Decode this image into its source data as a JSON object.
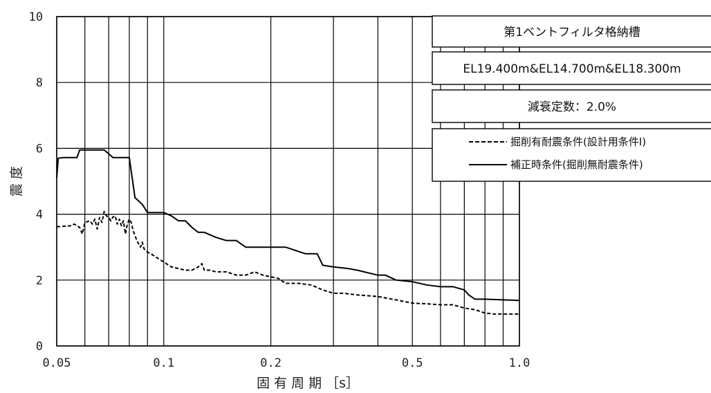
{
  "chart_data": {
    "type": "line",
    "title_lines": [
      "第1ベントフィルタ格納槽",
      "EL19.400m&EL14.700m&EL18.300m",
      "減衰定数：2.0%"
    ],
    "xlabel": "固 有 周 期 ［s］",
    "ylabel": "震 度",
    "x_scale": "log",
    "xlim": [
      0.05,
      1.0
    ],
    "ylim": [
      0,
      10
    ],
    "x_tick_labels": [
      {
        "value": 0.05,
        "label": "0.05"
      },
      {
        "value": 0.1,
        "label": "0.1"
      },
      {
        "value": 0.2,
        "label": "0.2"
      },
      {
        "value": 0.5,
        "label": "0.5"
      },
      {
        "value": 1.0,
        "label": "1.0"
      }
    ],
    "x_gridlines": [
      0.05,
      0.06,
      0.07,
      0.08,
      0.09,
      0.1,
      0.2,
      0.3,
      0.4,
      0.5,
      0.6,
      0.7,
      0.8,
      0.9,
      1.0
    ],
    "y_ticks": [
      0,
      2,
      4,
      6,
      8,
      10
    ],
    "grid": true,
    "legend_position": "top-right",
    "series": [
      {
        "name": "掘削有耐震条件(設計用条件Ⅰ)",
        "style": "dashed",
        "color": "#000000",
        "x": [
          0.05,
          0.055,
          0.056,
          0.058,
          0.059,
          0.06,
          0.062,
          0.063,
          0.064,
          0.065,
          0.066,
          0.067,
          0.068,
          0.069,
          0.07,
          0.071,
          0.072,
          0.073,
          0.074,
          0.075,
          0.076,
          0.077,
          0.078,
          0.079,
          0.08,
          0.081,
          0.082,
          0.083,
          0.084,
          0.085,
          0.086,
          0.087,
          0.088,
          0.09,
          0.092,
          0.095,
          0.1,
          0.105,
          0.11,
          0.115,
          0.12,
          0.125,
          0.128,
          0.13,
          0.135,
          0.14,
          0.15,
          0.16,
          0.17,
          0.18,
          0.19,
          0.2,
          0.21,
          0.22,
          0.24,
          0.26,
          0.28,
          0.3,
          0.32,
          0.35,
          0.4,
          0.45,
          0.5,
          0.55,
          0.6,
          0.65,
          0.7,
          0.75,
          0.8,
          0.85,
          0.9,
          1.0
        ],
        "y": [
          3.62,
          3.65,
          3.7,
          3.6,
          3.4,
          3.75,
          3.8,
          3.7,
          3.85,
          3.55,
          3.9,
          3.75,
          4.08,
          3.95,
          3.9,
          3.8,
          3.92,
          3.95,
          3.7,
          3.85,
          3.65,
          3.8,
          3.4,
          3.7,
          3.85,
          3.75,
          3.5,
          3.35,
          3.2,
          3.1,
          3.0,
          3.15,
          2.95,
          2.85,
          2.8,
          2.7,
          2.55,
          2.4,
          2.35,
          2.3,
          2.3,
          2.4,
          2.5,
          2.3,
          2.3,
          2.25,
          2.25,
          2.15,
          2.15,
          2.25,
          2.15,
          2.1,
          2.05,
          1.9,
          1.9,
          1.85,
          1.7,
          1.6,
          1.6,
          1.55,
          1.5,
          1.4,
          1.3,
          1.28,
          1.25,
          1.25,
          1.15,
          1.1,
          1.0,
          0.97,
          0.97,
          0.97
        ]
      },
      {
        "name": "補正時条件(掘削無耐震条件)",
        "style": "solid",
        "color": "#000000",
        "x": [
          0.05,
          0.0505,
          0.052,
          0.057,
          0.058,
          0.06,
          0.066,
          0.068,
          0.072,
          0.075,
          0.078,
          0.08,
          0.083,
          0.084,
          0.087,
          0.09,
          0.095,
          0.1,
          0.105,
          0.11,
          0.115,
          0.12,
          0.125,
          0.13,
          0.14,
          0.15,
          0.16,
          0.17,
          0.18,
          0.2,
          0.22,
          0.25,
          0.27,
          0.28,
          0.3,
          0.33,
          0.35,
          0.4,
          0.42,
          0.45,
          0.5,
          0.55,
          0.6,
          0.65,
          0.7,
          0.72,
          0.75,
          0.8,
          0.9,
          1.0
        ],
        "y": [
          5.1,
          5.7,
          5.72,
          5.72,
          5.95,
          5.95,
          5.95,
          5.95,
          5.72,
          5.72,
          5.72,
          5.72,
          4.5,
          4.45,
          4.3,
          4.05,
          4.05,
          4.05,
          3.95,
          3.8,
          3.8,
          3.6,
          3.45,
          3.45,
          3.3,
          3.2,
          3.2,
          3.0,
          3.0,
          3.0,
          3.0,
          2.8,
          2.8,
          2.45,
          2.4,
          2.35,
          2.3,
          2.15,
          2.15,
          2.0,
          1.95,
          1.85,
          1.8,
          1.8,
          1.7,
          1.55,
          1.42,
          1.42,
          1.4,
          1.38
        ]
      }
    ]
  }
}
